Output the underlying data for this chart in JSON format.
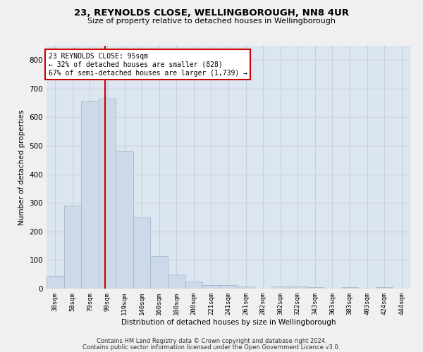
{
  "title_line1": "23, REYNOLDS CLOSE, WELLINGBOROUGH, NN8 4UR",
  "title_line2": "Size of property relative to detached houses in Wellingborough",
  "xlabel": "Distribution of detached houses by size in Wellingborough",
  "ylabel": "Number of detached properties",
  "categories": [
    "38sqm",
    "58sqm",
    "79sqm",
    "99sqm",
    "119sqm",
    "140sqm",
    "160sqm",
    "180sqm",
    "200sqm",
    "221sqm",
    "241sqm",
    "261sqm",
    "282sqm",
    "302sqm",
    "322sqm",
    "343sqm",
    "363sqm",
    "383sqm",
    "403sqm",
    "424sqm",
    "444sqm"
  ],
  "values": [
    45,
    290,
    655,
    665,
    480,
    250,
    113,
    50,
    25,
    13,
    13,
    8,
    0,
    8,
    8,
    5,
    0,
    5,
    0,
    5,
    0
  ],
  "bar_color": "#ccd9e8",
  "bar_edgecolor": "#aabcce",
  "grid_color": "#c8d0dc",
  "background_color": "#dce6f0",
  "fig_background_color": "#f0f0f0",
  "annotation_box_text": "23 REYNOLDS CLOSE: 95sqm\n← 32% of detached houses are smaller (828)\n67% of semi-detached houses are larger (1,739) →",
  "annotation_box_facecolor": "#ffffff",
  "annotation_box_edgecolor": "#cc0000",
  "vline_color": "#cc0000",
  "vline_x_index": 2.87,
  "ylim": [
    0,
    850
  ],
  "yticks": [
    0,
    100,
    200,
    300,
    400,
    500,
    600,
    700,
    800
  ],
  "footer_line1": "Contains HM Land Registry data © Crown copyright and database right 2024.",
  "footer_line2": "Contains public sector information licensed under the Open Government Licence v3.0."
}
